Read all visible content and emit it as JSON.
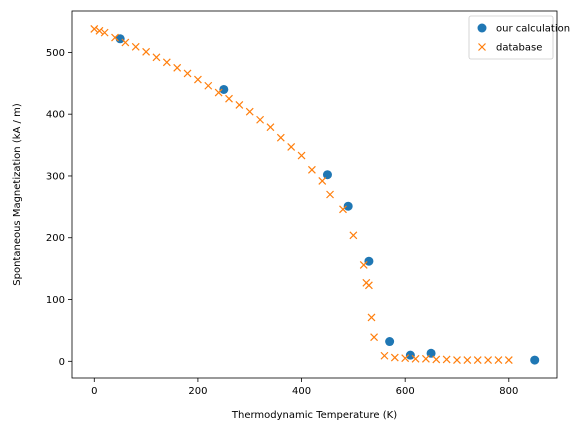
{
  "chart_data": {
    "type": "scatter",
    "title": "",
    "xlabel": "Thermodynamic Temperature (K)",
    "ylabel": "Spontaneous Magnetization (kA / m)",
    "xlim": [
      -43,
      893
    ],
    "ylim": [
      -27,
      567
    ],
    "xticks": [
      0,
      200,
      400,
      600,
      800
    ],
    "yticks": [
      0,
      100,
      200,
      300,
      400,
      500
    ],
    "grid": false,
    "legend": "top-right",
    "series": [
      {
        "name": "our calculation",
        "marker": "circle",
        "color": "#1f77b4",
        "x": [
          50,
          250,
          450,
          490,
          530,
          570,
          610,
          650,
          850
        ],
        "y": [
          522,
          440,
          302,
          251,
          162,
          32,
          10,
          13,
          2
        ]
      },
      {
        "name": "database",
        "marker": "x",
        "color": "#ff7f0e",
        "x": [
          0,
          10,
          20,
          40,
          60,
          80,
          100,
          120,
          140,
          160,
          180,
          200,
          220,
          240,
          260,
          280,
          300,
          320,
          340,
          360,
          380,
          400,
          420,
          440,
          455,
          480,
          500,
          520,
          525,
          530,
          535,
          540,
          560,
          580,
          600,
          620,
          640,
          660,
          680,
          700,
          720,
          740,
          760,
          780,
          800
        ],
        "y": [
          538,
          535,
          532,
          524,
          516,
          509,
          501,
          492,
          484,
          475,
          466,
          456,
          446,
          435,
          425,
          415,
          404,
          391,
          379,
          362,
          347,
          333,
          310,
          292,
          270,
          246,
          204,
          156,
          127,
          123,
          71,
          39,
          9,
          6,
          5,
          4,
          4,
          3,
          3,
          2,
          2,
          2,
          2,
          2,
          2
        ]
      }
    ]
  }
}
